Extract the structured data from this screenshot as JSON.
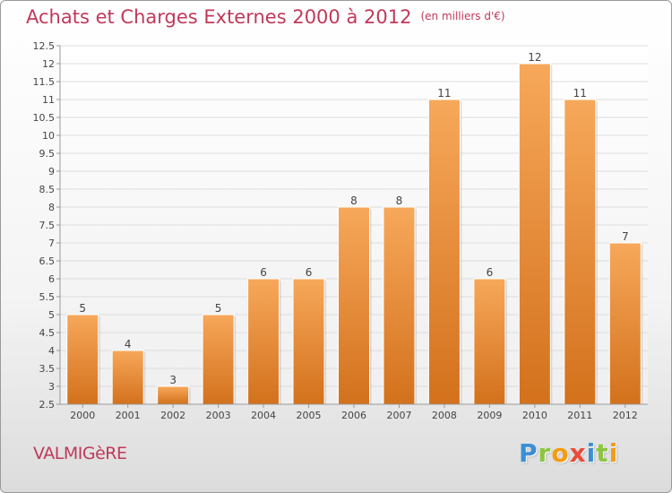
{
  "header": {
    "title": "Achats et Charges Externes 2000 à 2012",
    "subtitle": "(en milliers d'€)"
  },
  "footer": {
    "commune": "VALMIGèRE",
    "logo_letters": [
      {
        "char": "P",
        "color": "#3a8fd6"
      },
      {
        "char": "r",
        "color": "#8cc63f"
      },
      {
        "char": "o",
        "color": "#f39c12"
      },
      {
        "char": "x",
        "color": "#e74c3c"
      },
      {
        "char": "i",
        "color": "#3a8fd6"
      },
      {
        "char": "t",
        "color": "#8cc63f"
      },
      {
        "char": "i",
        "color": "#f39c12"
      }
    ]
  },
  "colors": {
    "accent": "#c0395a",
    "bar_light": "#f7a85a",
    "bar_dark": "#d3711c"
  },
  "chart_data": {
    "type": "bar",
    "title": "Achats et Charges Externes 2000 à 2012",
    "subtitle": "(en milliers d'€)",
    "xlabel": "",
    "ylabel": "",
    "categories": [
      "2000",
      "2001",
      "2002",
      "2003",
      "2004",
      "2005",
      "2006",
      "2007",
      "2008",
      "2009",
      "2010",
      "2011",
      "2012"
    ],
    "values": [
      5,
      4,
      3,
      5,
      6,
      6,
      8,
      8,
      11,
      6,
      12,
      11,
      7
    ],
    "data_labels": [
      "5",
      "4",
      "3",
      "5",
      "6",
      "6",
      "8",
      "8",
      "11",
      "6",
      "12",
      "11",
      "7"
    ],
    "ylim": [
      2.5,
      12.5
    ],
    "yticks": [
      2.5,
      3,
      3.5,
      4,
      4.5,
      5,
      5.5,
      6,
      6.5,
      7,
      7.5,
      8,
      8.5,
      9,
      9.5,
      10,
      10.5,
      11,
      11.5,
      12,
      12.5
    ],
    "ytick_labels": [
      "2.5",
      "3",
      "3.5",
      "4",
      "4.5",
      "5",
      "5.5",
      "6",
      "6.5",
      "7",
      "7.5",
      "8",
      "8.5",
      "9",
      "9.5",
      "10",
      "10.5",
      "11",
      "11.5",
      "12",
      "12.5"
    ],
    "grid": true,
    "legend": "none"
  }
}
